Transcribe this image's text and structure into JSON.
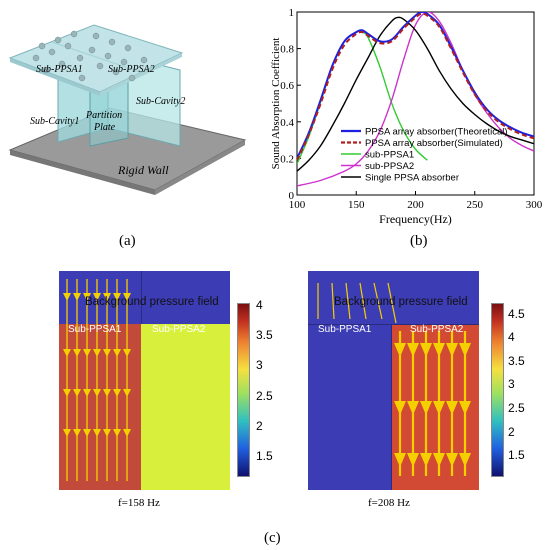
{
  "panel_a": {
    "label": "(a)",
    "sub_ppsa1": "Sub-PPSA1",
    "sub_ppsa2": "Sub-PPSA2",
    "sub_cavity2": "Sub-Cavity2",
    "sub_cavity1": "Sub-Cavity1",
    "partition_line1": "Partition",
    "partition_line2": "Plate",
    "rigid_wall": "Rigid Wall"
  },
  "panel_b": {
    "label": "(b)"
  },
  "panel_c": {
    "label": "(c)",
    "left_caption": "f=158 Hz",
    "right_caption": "f=208 Hz",
    "left_bg_label": "Background pressure field",
    "right_bg_label": "Background pressure field",
    "left_sub1": "Sub-PPSA1",
    "left_sub2": "Sub-PPSA2",
    "right_sub1": "Sub-PPSA1",
    "right_sub2": "Sub-PPSA2",
    "left_colorbar": {
      "ticks": [
        "4",
        "3.5",
        "3",
        "2.5",
        "2",
        "1.5"
      ],
      "min": 1.2,
      "max": 4.05
    },
    "right_colorbar": {
      "ticks": [
        "4.5",
        "4",
        "3.5",
        "3",
        "2.5",
        "2",
        "1.5"
      ],
      "min": 1.1,
      "max": 4.75
    },
    "colors": {
      "blue": "#3c3cb4",
      "red": "#c24a3a",
      "yellow_green": "#d8f03c",
      "arrow": "#f5d000"
    }
  },
  "chart_data": {
    "type": "line",
    "xlabel": "Frequency(Hz)",
    "ylabel": "Sound Absorption Coefficient",
    "xlim": [
      100,
      300
    ],
    "ylim": [
      0,
      1
    ],
    "xticks": [
      "100",
      "150",
      "200",
      "250",
      "300"
    ],
    "yticks": [
      "0",
      "0.2",
      "0.4",
      "0.6",
      "0.8",
      "1"
    ],
    "legend_position": "lower-right",
    "series": [
      {
        "name": "PPSA array absorber(Theoretical)",
        "color": "#1f1fe0",
        "dash": "",
        "x": [
          100,
          110,
          120,
          130,
          140,
          150,
          155,
          160,
          170,
          180,
          190,
          200,
          205,
          210,
          220,
          230,
          240,
          250,
          260,
          270,
          280,
          290,
          300
        ],
        "y": [
          0.2,
          0.34,
          0.52,
          0.71,
          0.84,
          0.89,
          0.9,
          0.88,
          0.84,
          0.85,
          0.92,
          0.98,
          1.0,
          0.99,
          0.93,
          0.81,
          0.68,
          0.56,
          0.47,
          0.41,
          0.37,
          0.34,
          0.32
        ]
      },
      {
        "name": "PPSA array absorber(Simulated)",
        "color": "#b02020",
        "dash": "5,3",
        "x": [
          100,
          110,
          120,
          130,
          140,
          150,
          155,
          160,
          170,
          180,
          190,
          200,
          205,
          210,
          220,
          230,
          240,
          250,
          260,
          270,
          280,
          290,
          300
        ],
        "y": [
          0.19,
          0.33,
          0.5,
          0.69,
          0.82,
          0.88,
          0.89,
          0.87,
          0.83,
          0.84,
          0.91,
          0.97,
          0.99,
          0.98,
          0.92,
          0.8,
          0.67,
          0.55,
          0.46,
          0.4,
          0.36,
          0.33,
          0.31
        ]
      },
      {
        "name": "sub-PPSA1",
        "color": "#33cc33",
        "dash": "",
        "x": [
          100,
          110,
          120,
          130,
          140,
          150,
          155,
          160,
          170,
          180,
          190,
          200,
          210
        ],
        "y": [
          0.17,
          0.32,
          0.51,
          0.71,
          0.84,
          0.89,
          0.89,
          0.86,
          0.7,
          0.5,
          0.35,
          0.25,
          0.19
        ]
      },
      {
        "name": "sub-PPSA2",
        "color": "#cc33cc",
        "dash": "",
        "x": [
          100,
          120,
          140,
          150,
          160,
          170,
          180,
          190,
          200,
          210,
          220,
          230,
          240,
          250,
          260,
          270,
          280,
          290,
          300
        ],
        "y": [
          0.05,
          0.08,
          0.13,
          0.17,
          0.24,
          0.35,
          0.52,
          0.74,
          0.93,
          1.0,
          0.95,
          0.83,
          0.68,
          0.55,
          0.45,
          0.37,
          0.31,
          0.27,
          0.24
        ]
      },
      {
        "name": "Single PPSA absorber",
        "color": "#000000",
        "dash": "",
        "x": [
          100,
          110,
          120,
          130,
          140,
          150,
          160,
          170,
          180,
          185,
          190,
          200,
          210,
          220,
          230,
          240,
          250,
          260,
          270,
          280,
          290,
          300
        ],
        "y": [
          0.13,
          0.19,
          0.27,
          0.38,
          0.5,
          0.63,
          0.75,
          0.87,
          0.95,
          0.97,
          0.96,
          0.9,
          0.8,
          0.68,
          0.58,
          0.5,
          0.44,
          0.39,
          0.35,
          0.32,
          0.3,
          0.28
        ]
      }
    ]
  }
}
